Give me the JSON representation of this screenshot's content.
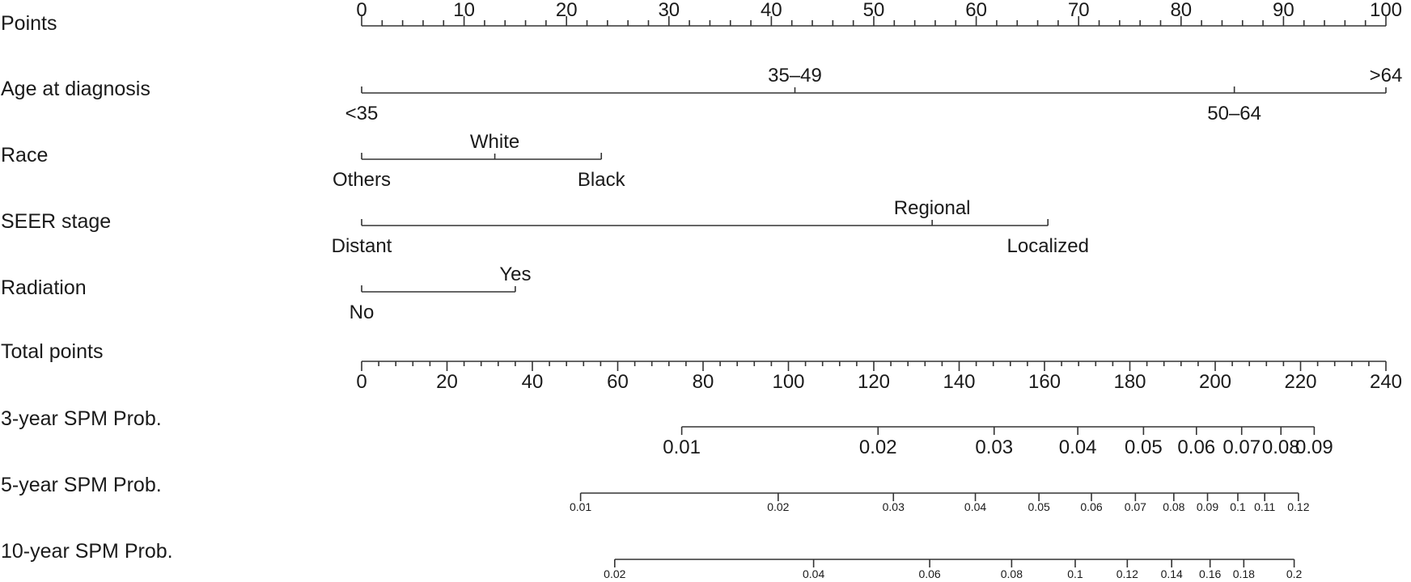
{
  "chart_data": {
    "type": "nomogram",
    "points_axis": {
      "label": "Points",
      "min": 0,
      "max": 100,
      "major_step": 10,
      "minor_step": 2
    },
    "variables": [
      {
        "label": "Age at diagnosis",
        "levels": [
          {
            "name": "<35",
            "points": 0
          },
          {
            "name": "35–49",
            "points": 42.3
          },
          {
            "name": "50–64",
            "points": 85.2
          },
          {
            "name": ">64",
            "points": 100
          }
        ]
      },
      {
        "label": "Race",
        "levels": [
          {
            "name": "Others",
            "points": 0
          },
          {
            "name": "White",
            "points": 13
          },
          {
            "name": "Black",
            "points": 23.4
          }
        ]
      },
      {
        "label": "SEER stage",
        "levels": [
          {
            "name": "Distant",
            "points": 0
          },
          {
            "name": "Regional",
            "points": 55.7
          },
          {
            "name": "Localized",
            "points": 67
          }
        ]
      },
      {
        "label": "Radiation",
        "levels": [
          {
            "name": "No",
            "points": 0
          },
          {
            "name": "Yes",
            "points": 15
          }
        ]
      }
    ],
    "total_points_axis": {
      "label": "Total points",
      "min": 0,
      "max": 240,
      "major_step": 20,
      "minor_step": 4
    },
    "probability_scales": [
      {
        "label": "3-year SPM Prob.",
        "ticks": [
          {
            "value": "0.01",
            "total_points": 75
          },
          {
            "value": "0.02",
            "total_points": 121
          },
          {
            "value": "0.03",
            "total_points": 148.2
          },
          {
            "value": "0.04",
            "total_points": 167.8
          },
          {
            "value": "0.05",
            "total_points": 183.2
          },
          {
            "value": "0.06",
            "total_points": 195.6
          },
          {
            "value": "0.07",
            "total_points": 206.2
          },
          {
            "value": "0.08",
            "total_points": 215.4
          },
          {
            "value": "0.09",
            "total_points": 223.2
          }
        ]
      },
      {
        "label": "5-year SPM Prob.",
        "ticks": [
          {
            "value": "0.01",
            "total_points": 51.3
          },
          {
            "value": "0.02",
            "total_points": 97.6
          },
          {
            "value": "0.03",
            "total_points": 124.6
          },
          {
            "value": "0.04",
            "total_points": 143.8
          },
          {
            "value": "0.05",
            "total_points": 158.7
          },
          {
            "value": "0.06",
            "total_points": 171
          },
          {
            "value": "0.07",
            "total_points": 181.3
          },
          {
            "value": "0.08",
            "total_points": 190.3
          },
          {
            "value": "0.09",
            "total_points": 198.2
          },
          {
            "value": "0.1",
            "total_points": 205.3
          },
          {
            "value": "0.11",
            "total_points": 211.6
          },
          {
            "value": "0.12",
            "total_points": 219.5
          }
        ]
      },
      {
        "label": "10-year SPM Prob.",
        "ticks": [
          {
            "value": "0.02",
            "total_points": 59.3
          },
          {
            "value": "0.04",
            "total_points": 105.9
          },
          {
            "value": "0.06",
            "total_points": 133.1
          },
          {
            "value": "0.08",
            "total_points": 152.3
          },
          {
            "value": "0.1",
            "total_points": 167.2
          },
          {
            "value": "0.12",
            "total_points": 179.4
          },
          {
            "value": "0.14",
            "total_points": 189.8
          },
          {
            "value": "0.16",
            "total_points": 198.8
          },
          {
            "value": "0.18",
            "total_points": 206.7
          },
          {
            "value": "0.2",
            "total_points": 218.5
          }
        ]
      }
    ]
  }
}
